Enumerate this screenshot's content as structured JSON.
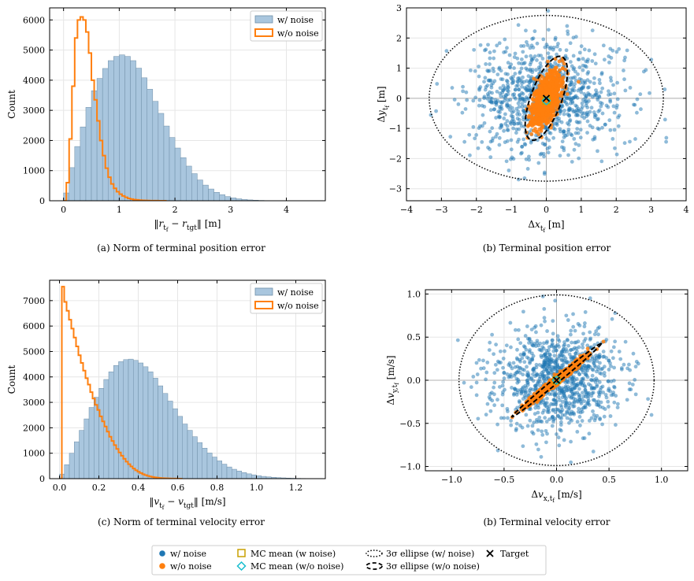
{
  "colors": {
    "noise": "#1f77b4",
    "noise_hist_fill": "#a9c6de",
    "no_noise": "#ff7f0e",
    "mean_noise_marker": "#c8a000",
    "mean_no_noise_marker": "#17becf",
    "grid": "#e6e6e6"
  },
  "chart_data": [
    {
      "id": "a",
      "type": "histogram",
      "caption": "(a) Norm of terminal position error",
      "xlabel": "‖r_tf − r_tgt‖ [m]",
      "ylabel": "Count",
      "xlim": [
        -0.25,
        4.7
      ],
      "ylim": [
        0,
        6400
      ],
      "xticks": [
        0,
        1,
        2,
        3,
        4
      ],
      "yticks": [
        0,
        1000,
        2000,
        3000,
        4000,
        5000,
        6000
      ],
      "legend": {
        "position": "top-right",
        "entries": [
          "w/ noise",
          "w/o noise"
        ]
      },
      "grid": true,
      "series": [
        {
          "name": "w/ noise",
          "style": "filled-bars",
          "bin_start": 0.0,
          "bin_width": 0.1,
          "values": [
            260,
            1100,
            1800,
            2450,
            3100,
            3650,
            4060,
            4390,
            4650,
            4790,
            4840,
            4790,
            4650,
            4400,
            4080,
            3700,
            3300,
            2900,
            2480,
            2100,
            1750,
            1430,
            1150,
            900,
            690,
            520,
            390,
            280,
            200,
            140,
            95,
            65,
            42,
            28,
            18,
            11,
            7,
            4,
            3,
            2,
            1,
            1,
            1,
            0,
            0
          ]
        },
        {
          "name": "w/o noise",
          "style": "step",
          "bin_start": 0.0,
          "bin_width": 0.05,
          "values": [
            0,
            600,
            2050,
            3800,
            5400,
            6000,
            6100,
            6000,
            5600,
            4900,
            4000,
            3350,
            2650,
            2000,
            1500,
            1080,
            780,
            560,
            410,
            300,
            220,
            160,
            115,
            80,
            55,
            40,
            28,
            20,
            14,
            9,
            6,
            4,
            3,
            2,
            1,
            0,
            0
          ]
        }
      ]
    },
    {
      "id": "b",
      "type": "scatter",
      "caption": "(b) Terminal position error",
      "xlabel": "Δx_tf [m]",
      "ylabel": "Δy_tf [m]",
      "xlim": [
        -4,
        4
      ],
      "ylim": [
        -3.4,
        3
      ],
      "xticks": [
        -4,
        -3,
        -2,
        -1,
        0,
        1,
        2,
        3,
        4
      ],
      "yticks": [
        -3,
        -2,
        -1,
        0,
        1,
        2,
        3
      ],
      "grid": true,
      "noise_cloud": {
        "count": 950,
        "sigma_x": 1.1,
        "sigma_y": 0.95,
        "rho": 0.0,
        "seed": 7
      },
      "no_noise_cloud": {
        "count": 900,
        "sigma_x": 0.2,
        "sigma_y": 0.45,
        "rho": 0.55,
        "seed": 11
      },
      "ellipse_noise": {
        "center": [
          0,
          0
        ],
        "rx": 3.35,
        "ry": 2.75,
        "angle_deg": 0
      },
      "ellipse_no_noise": {
        "center": [
          0,
          0
        ],
        "rx": 0.45,
        "ry": 1.45,
        "angle_deg": -17
      },
      "mean_noise": [
        0.0,
        -0.08
      ],
      "mean_no_noise": [
        0.0,
        -0.08
      ],
      "target": [
        0,
        0
      ]
    },
    {
      "id": "c",
      "type": "histogram",
      "caption": "(c) Norm of terminal velocity error",
      "xlabel": "‖v_tf − v_tgt‖ [m/s]",
      "ylabel": "Count",
      "xlim": [
        -0.05,
        1.35
      ],
      "ylim": [
        0,
        7800
      ],
      "xticks": [
        0.0,
        0.2,
        0.4,
        0.6,
        0.8,
        1.0,
        1.2
      ],
      "yticks": [
        0,
        1000,
        2000,
        3000,
        4000,
        5000,
        6000,
        7000
      ],
      "legend": {
        "position": "top-right",
        "entries": [
          "w/ noise",
          "w/o noise"
        ]
      },
      "grid": true,
      "series": [
        {
          "name": "w/ noise",
          "style": "filled-bars",
          "bin_start": 0.0,
          "bin_width": 0.025,
          "values": [
            180,
            550,
            1000,
            1450,
            1900,
            2350,
            2800,
            3200,
            3550,
            3900,
            4200,
            4450,
            4600,
            4680,
            4700,
            4650,
            4550,
            4400,
            4200,
            3950,
            3650,
            3350,
            3050,
            2750,
            2450,
            2150,
            1900,
            1650,
            1420,
            1200,
            1010,
            850,
            700,
            570,
            460,
            370,
            300,
            240,
            190,
            150,
            115,
            90,
            70,
            54,
            41,
            31,
            23,
            17,
            12,
            9,
            7,
            5,
            4,
            3,
            2,
            1
          ]
        },
        {
          "name": "w/o noise",
          "style": "step",
          "bin_start": 0.0,
          "bin_width": 0.012,
          "values": [
            0,
            7550,
            6950,
            6600,
            6250,
            5900,
            5550,
            5200,
            4850,
            4550,
            4250,
            3950,
            3700,
            3400,
            3150,
            2900,
            2700,
            2450,
            2250,
            2050,
            1850,
            1650,
            1480,
            1320,
            1170,
            1030,
            900,
            780,
            670,
            570,
            480,
            400,
            330,
            270,
            220,
            175,
            140,
            110,
            85,
            65,
            50,
            38,
            28,
            20,
            14,
            10,
            7,
            5,
            3,
            2,
            1,
            0
          ]
        }
      ]
    },
    {
      "id": "d",
      "type": "scatter",
      "caption": "(b) Terminal velocity error",
      "xlabel": "Δv_x,tf [m/s]",
      "ylabel": "Δv_y,tf [m/s]",
      "xlim": [
        -1.25,
        1.25
      ],
      "ylim": [
        -1.05,
        1.05
      ],
      "xticks": [
        -1.0,
        -0.5,
        0.0,
        0.5,
        1.0
      ],
      "yticks": [
        -1.0,
        -0.5,
        0.0,
        0.5,
        1.0
      ],
      "grid": true,
      "noise_cloud": {
        "count": 1000,
        "sigma_x": 0.3,
        "sigma_y": 0.3,
        "rho": 0.0,
        "seed": 23
      },
      "no_noise_cloud": {
        "count": 900,
        "sigma_x": 0.14,
        "sigma_y": 0.14,
        "rho": 0.985,
        "seed": 31
      },
      "ellipse_noise": {
        "center": [
          0,
          0
        ],
        "rx": 0.93,
        "ry": 0.99,
        "angle_deg": 0
      },
      "ellipse_no_noise": {
        "center": [
          0,
          0
        ],
        "rx": 0.6,
        "ry": 0.028,
        "angle_deg": 45
      },
      "mean_noise": [
        0.0,
        0.0
      ],
      "mean_no_noise": [
        0.0,
        0.0
      ],
      "target": [
        0,
        0
      ]
    }
  ],
  "legend_bottom": {
    "entries": [
      {
        "key": "noise-point",
        "label": "w/ noise"
      },
      {
        "key": "no-noise-point",
        "label": "w/o noise"
      },
      {
        "key": "mean-noise",
        "label": "MC mean (w noise)"
      },
      {
        "key": "mean-no-noise",
        "label": "MC mean (w/o noise)"
      },
      {
        "key": "ellipse-noise",
        "label": "3σ ellipse (w/ noise)"
      },
      {
        "key": "ellipse-no-noise",
        "label": "3σ ellipse (w/o noise)"
      },
      {
        "key": "target",
        "label": "Target"
      }
    ]
  }
}
